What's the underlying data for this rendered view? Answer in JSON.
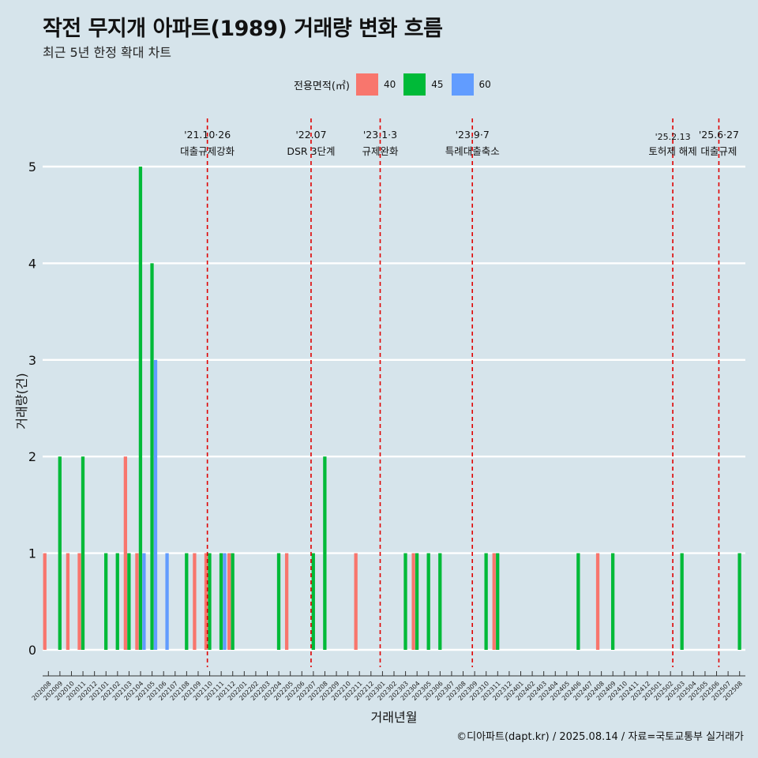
{
  "title": "작전 무지개 아파트(1989) 거래량 변화 흐름",
  "subtitle": "최근 5년 한정 확대 차트",
  "caption": "©디아파트(dapt.kr) / 2025.08.14 / 자료=국토교통부 실거래가",
  "legend": {
    "title": "전용면적(㎡)",
    "items": [
      {
        "label": "40",
        "color": "#f8766d"
      },
      {
        "label": "45",
        "color": "#00ba38"
      },
      {
        "label": "60",
        "color": "#619cff"
      }
    ]
  },
  "chart_data": {
    "type": "bar",
    "xlabel": "거래년월",
    "ylabel": "거래량(건)",
    "ylim": [
      0,
      5
    ],
    "yticks": [
      0,
      1,
      2,
      3,
      4,
      5
    ],
    "categories": [
      "202008",
      "202009",
      "202010",
      "202011",
      "202012",
      "202101",
      "202102",
      "202103",
      "202104",
      "202105",
      "202106",
      "202107",
      "202108",
      "202109",
      "202110",
      "202111",
      "202112",
      "202201",
      "202202",
      "202203",
      "202204",
      "202205",
      "202206",
      "202207",
      "202208",
      "202209",
      "202210",
      "202211",
      "202212",
      "202301",
      "202302",
      "202303",
      "202304",
      "202305",
      "202306",
      "202307",
      "202308",
      "202309",
      "202310",
      "202311",
      "202312",
      "202401",
      "202402",
      "202403",
      "202404",
      "202405",
      "202406",
      "202407",
      "202408",
      "202409",
      "202410",
      "202411",
      "202412",
      "202501",
      "202502",
      "202503",
      "202504",
      "202505",
      "202506",
      "202507",
      "202508"
    ],
    "series": [
      {
        "name": "40",
        "color": "#f8766d",
        "values": [
          1,
          0,
          1,
          1,
          0,
          0,
          0,
          2,
          1,
          0,
          0,
          0,
          0,
          1,
          1,
          0,
          1,
          0,
          0,
          0,
          0,
          1,
          0,
          0,
          0,
          0,
          0,
          1,
          0,
          0,
          0,
          0,
          1,
          0,
          0,
          0,
          0,
          0,
          0,
          1,
          0,
          0,
          0,
          0,
          0,
          0,
          0,
          0,
          1,
          0,
          0,
          0,
          0,
          0,
          0,
          0,
          0,
          0,
          0,
          0,
          0
        ]
      },
      {
        "name": "45",
        "color": "#00ba38",
        "values": [
          0,
          2,
          0,
          2,
          0,
          1,
          1,
          1,
          5,
          4,
          0,
          0,
          1,
          0,
          1,
          1,
          1,
          0,
          0,
          0,
          1,
          0,
          0,
          1,
          2,
          0,
          0,
          0,
          0,
          0,
          0,
          1,
          1,
          1,
          1,
          0,
          0,
          0,
          1,
          1,
          0,
          0,
          0,
          0,
          0,
          0,
          1,
          0,
          0,
          1,
          0,
          0,
          0,
          0,
          0,
          1,
          0,
          0,
          0,
          0,
          1
        ]
      },
      {
        "name": "60",
        "color": "#619cff",
        "values": [
          0,
          0,
          0,
          0,
          0,
          0,
          0,
          0,
          1,
          3,
          1,
          0,
          0,
          0,
          0,
          1,
          0,
          0,
          0,
          0,
          0,
          0,
          0,
          0,
          0,
          0,
          0,
          0,
          0,
          0,
          0,
          0,
          0,
          0,
          0,
          0,
          0,
          0,
          0,
          0,
          0,
          0,
          0,
          0,
          0,
          0,
          0,
          0,
          0,
          0,
          0,
          0,
          0,
          0,
          0,
          0,
          0,
          0,
          0,
          0,
          0
        ]
      }
    ],
    "events": [
      {
        "date": "'21.10·26",
        "label": "대출규제강화",
        "pos": 14.3
      },
      {
        "date": "'22.07",
        "label": "DSR 3단계",
        "pos": 23.3
      },
      {
        "date": "'23.1·3",
        "label": "규제완화",
        "pos": 29.3
      },
      {
        "date": "'23.9·7",
        "label": "특례대출축소",
        "pos": 37.3
      },
      {
        "date": "'25.2.13",
        "label": "토허제 해제",
        "pos": 54.7
      },
      {
        "date": "'25.6·27",
        "label": "대출규제",
        "pos": 58.7
      }
    ]
  }
}
